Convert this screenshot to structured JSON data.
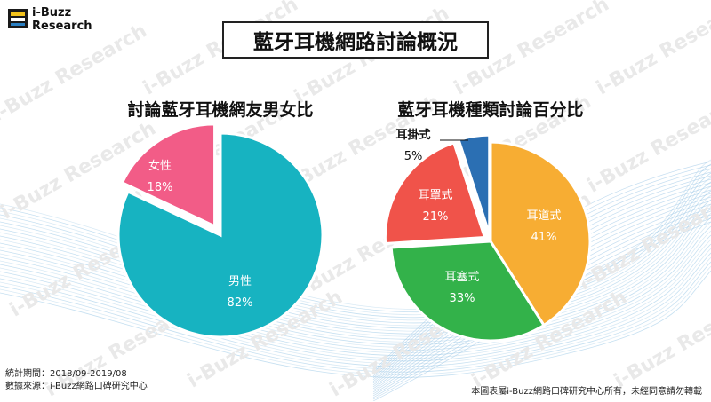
{
  "logo": {
    "line1": "i-Buzz",
    "line2": "Research"
  },
  "page_title": "藍牙耳機網路討論概況",
  "watermark_text": "i-Buzz Research",
  "colors": {
    "teal": "#17b3c1",
    "pink": "#f25c87",
    "orange": "#f7ad33",
    "green": "#33b24a",
    "red": "#f0534a",
    "blue": "#2b6fb3"
  },
  "chart_data": [
    {
      "type": "pie",
      "title": "討論藍牙耳機網友男女比",
      "slices": [
        {
          "label": "男性",
          "value": 82,
          "value_label": "82%",
          "color": "#17b3c1"
        },
        {
          "label": "女性",
          "value": 18,
          "value_label": "18%",
          "color": "#f25c87"
        }
      ]
    },
    {
      "type": "pie",
      "title": "藍牙耳機種類討論百分比",
      "slices": [
        {
          "label": "耳道式",
          "value": 41,
          "value_label": "41%",
          "color": "#f7ad33"
        },
        {
          "label": "耳塞式",
          "value": 33,
          "value_label": "33%",
          "color": "#33b24a"
        },
        {
          "label": "耳罩式",
          "value": 21,
          "value_label": "21%",
          "color": "#f0534a"
        },
        {
          "label": "耳掛式",
          "value": 5,
          "value_label": "5%",
          "color": "#2b6fb3"
        }
      ]
    }
  ],
  "footer": {
    "period": "統計期間：2018/09-2019/08",
    "source": "數據來源：i-Buzz網路口碑研究中心",
    "copyright": "本圖表屬i-Buzz網路口碑研究中心所有，未經同意請勿轉載"
  }
}
